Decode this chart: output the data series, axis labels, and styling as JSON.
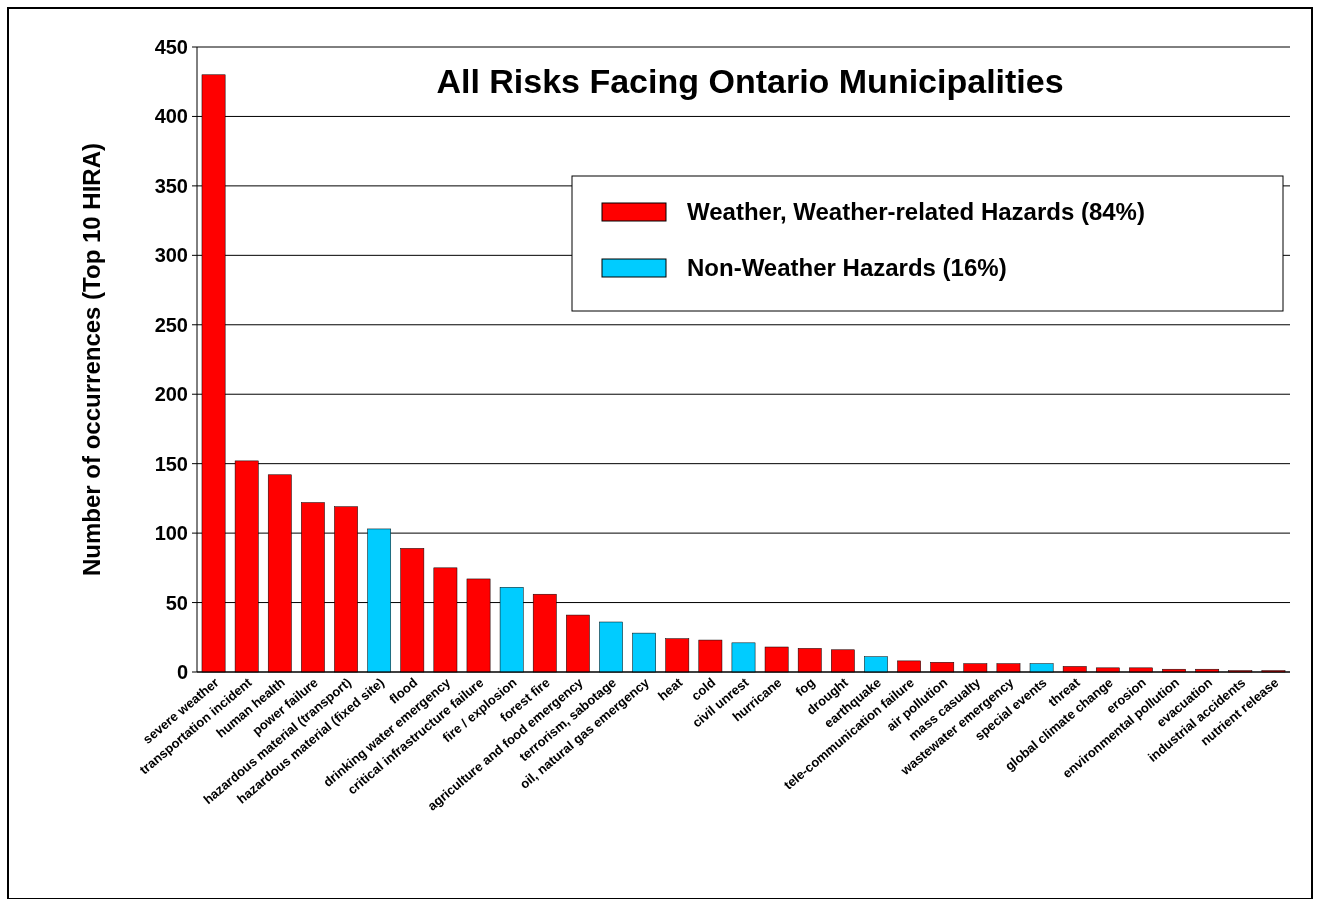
{
  "chart_data": {
    "type": "bar",
    "title": "All Risks Facing Ontario Municipalities",
    "ylabel": "Number of occurrences (Top 10 HIRA)",
    "categories": [
      "severe weather",
      "transportation  incident",
      "human health",
      "power failure",
      "hazardous material (transport)",
      "hazardous material (fixed site)",
      "flood",
      "drinking water emergency",
      "critical infrastructure failure",
      "fire / explosion",
      "forest fire",
      "agriculture and food emergency",
      "terrorism, sabotage",
      "oil, natural gas emergency",
      "heat",
      "cold",
      "civil unrest",
      "hurricane",
      "fog",
      "drought",
      "earthquake",
      "tele-communication failure",
      "air pollution",
      "mass casualty",
      "wastewater emergency",
      "special events",
      "threat",
      "global climate change",
      "erosion",
      "environmental pollution",
      "evacuation",
      "industrial accidents",
      "nutrient release"
    ],
    "series": [
      {
        "name": "Weather, Weather-related Hazards (84%)",
        "color": "#ff0000",
        "values": [
          430,
          152,
          142,
          122,
          119,
          null,
          89,
          75,
          67,
          null,
          56,
          41,
          null,
          null,
          24,
          23,
          null,
          18,
          17,
          16,
          null,
          8,
          7,
          6,
          6,
          null,
          4,
          3,
          3,
          2,
          2,
          1,
          1
        ]
      },
      {
        "name": "Non-Weather Hazards (16%)",
        "color": "#00ccff",
        "values": [
          null,
          null,
          null,
          null,
          null,
          103,
          null,
          null,
          null,
          61,
          null,
          null,
          36,
          28,
          null,
          null,
          21,
          null,
          null,
          null,
          11,
          null,
          null,
          null,
          null,
          6,
          null,
          null,
          null,
          null,
          null,
          null,
          null
        ]
      }
    ],
    "ylim": [
      0,
      450
    ],
    "yticks": [
      0,
      50,
      100,
      150,
      200,
      250,
      300,
      350,
      400,
      450
    ],
    "grid": "y",
    "legend": "top right"
  }
}
